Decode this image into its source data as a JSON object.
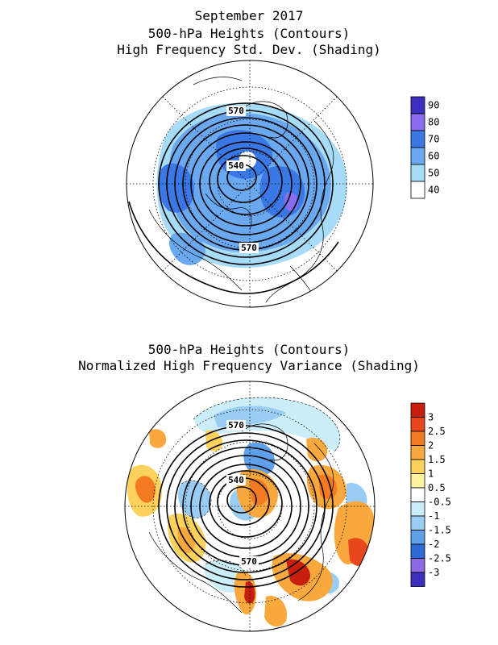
{
  "titles": {
    "top_line1": "September 2017",
    "top_line2": "500-hPa Heights (Contours)",
    "top_line3": "High Frequency Std. Dev. (Shading)",
    "bottom_line1": "500-hPa Heights (Contours)",
    "bottom_line2": "Normalized High Frequency Variance (Shading)"
  },
  "top_map": {
    "contour_labels": [
      "570",
      "540",
      "570"
    ],
    "colorbar": {
      "labels": [
        "90",
        "80",
        "70",
        "60",
        "50",
        "40"
      ],
      "colors": [
        "#3a2fc0",
        "#8a6cf0",
        "#3a78e6",
        "#6aa8f0",
        "#a6dcf8",
        "#ffffff"
      ]
    }
  },
  "bottom_map": {
    "contour_labels": [
      "570",
      "540",
      "570"
    ],
    "colorbar": {
      "labels": [
        "3",
        "2.5",
        "2",
        "1.5",
        "1",
        "0.5",
        "-0.5",
        "-1",
        "-1.5",
        "-2",
        "-2.5",
        "-3"
      ],
      "colors": [
        "#c81e0e",
        "#e8461c",
        "#f47a22",
        "#f8a83c",
        "#fcd25c",
        "#fff2a0",
        "#ffffff",
        "#cceefa",
        "#9acdf4",
        "#5fa0ea",
        "#2d6ad8",
        "#8f6ae8",
        "#3b2fbe"
      ]
    }
  },
  "colors": {
    "contour": "#000000",
    "coast": "#000000",
    "grid": "#000000"
  }
}
